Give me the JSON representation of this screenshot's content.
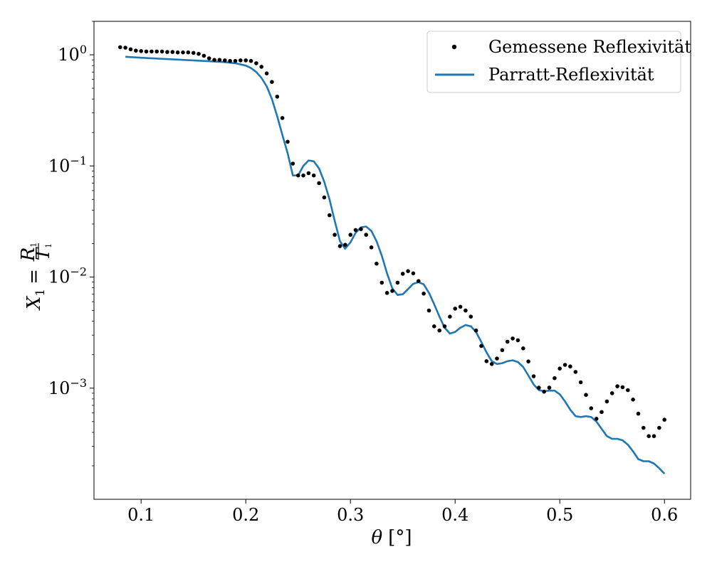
{
  "chart_data": {
    "type": "line",
    "title": "",
    "xlabel": {
      "symbol": "θ",
      "unit": "[°]"
    },
    "ylabel": {
      "lhs": "X",
      "lhs_sub": "1",
      "eq": "=",
      "num": "R",
      "num_sub": "1",
      "den": "T",
      "den_sub": "1"
    },
    "xlim": [
      0.055,
      0.625
    ],
    "ylim": [
      0.0001,
      2.0
    ],
    "yscale": "log",
    "grid": false,
    "legend_position": "top-right",
    "x_ticks": [
      {
        "value": 0.1,
        "label": "0.1"
      },
      {
        "value": 0.2,
        "label": "0.2"
      },
      {
        "value": 0.3,
        "label": "0.3"
      },
      {
        "value": 0.4,
        "label": "0.4"
      },
      {
        "value": 0.5,
        "label": "0.5"
      },
      {
        "value": 0.6,
        "label": "0.6"
      }
    ],
    "y_ticks": [
      {
        "value": 1,
        "base": "10",
        "exp": "0"
      },
      {
        "value": 0.1,
        "base": "10",
        "exp": "−1"
      },
      {
        "value": 0.01,
        "base": "10",
        "exp": "−2"
      },
      {
        "value": 0.001,
        "base": "10",
        "exp": "−3"
      }
    ],
    "series": [
      {
        "name": "Gemessene Reflexivität",
        "style": "dots",
        "color": "#000000",
        "x": [
          0.08,
          0.085,
          0.09,
          0.095,
          0.1,
          0.105,
          0.11,
          0.115,
          0.12,
          0.125,
          0.13,
          0.135,
          0.14,
          0.145,
          0.15,
          0.155,
          0.16,
          0.165,
          0.17,
          0.175,
          0.18,
          0.185,
          0.19,
          0.195,
          0.2,
          0.205,
          0.21,
          0.215,
          0.22,
          0.225,
          0.23,
          0.235,
          0.24,
          0.245,
          0.25,
          0.255,
          0.26,
          0.265,
          0.27,
          0.275,
          0.28,
          0.285,
          0.29,
          0.295,
          0.3,
          0.305,
          0.31,
          0.315,
          0.32,
          0.325,
          0.33,
          0.335,
          0.34,
          0.345,
          0.35,
          0.355,
          0.36,
          0.365,
          0.37,
          0.375,
          0.38,
          0.385,
          0.39,
          0.395,
          0.4,
          0.405,
          0.41,
          0.415,
          0.42,
          0.425,
          0.43,
          0.435,
          0.44,
          0.445,
          0.45,
          0.455,
          0.46,
          0.465,
          0.47,
          0.475,
          0.48,
          0.485,
          0.49,
          0.495,
          0.5,
          0.505,
          0.51,
          0.515,
          0.52,
          0.525,
          0.53,
          0.535,
          0.54,
          0.545,
          0.55,
          0.555,
          0.56,
          0.565,
          0.57,
          0.575,
          0.58,
          0.585,
          0.59,
          0.595,
          0.6
        ],
        "y": [
          1.17,
          1.16,
          1.12,
          1.09,
          1.08,
          1.07,
          1.07,
          1.07,
          1.07,
          1.06,
          1.06,
          1.05,
          1.05,
          1.05,
          1.04,
          1.02,
          0.98,
          0.93,
          0.9,
          0.9,
          0.89,
          0.88,
          0.88,
          0.89,
          0.89,
          0.88,
          0.84,
          0.78,
          0.68,
          0.57,
          0.42,
          0.27,
          0.165,
          0.105,
          0.082,
          0.082,
          0.086,
          0.082,
          0.07,
          0.052,
          0.036,
          0.024,
          0.019,
          0.0195,
          0.024,
          0.0265,
          0.027,
          0.024,
          0.0185,
          0.0132,
          0.0089,
          0.0072,
          0.0075,
          0.0089,
          0.0107,
          0.0113,
          0.0108,
          0.0092,
          0.0071,
          0.005,
          0.0036,
          0.0033,
          0.0036,
          0.0044,
          0.0052,
          0.0054,
          0.005,
          0.0044,
          0.0033,
          0.0024,
          0.00175,
          0.00165,
          0.00185,
          0.0022,
          0.00262,
          0.0028,
          0.0027,
          0.00228,
          0.00174,
          0.00128,
          0.00101,
          0.00093,
          0.00101,
          0.00123,
          0.0015,
          0.00162,
          0.00157,
          0.0014,
          0.00113,
          0.00087,
          0.00066,
          0.00053,
          0.00061,
          0.00076,
          0.0009,
          0.00104,
          0.00102,
          0.00096,
          0.00079,
          0.00059,
          0.00044,
          0.00037,
          0.00037,
          0.00044,
          0.00052
        ]
      },
      {
        "name": "Parratt-Reflexivität",
        "style": "line",
        "color": "#1f77b4",
        "x": [
          0.085,
          0.1,
          0.12,
          0.14,
          0.16,
          0.18,
          0.19,
          0.2,
          0.205,
          0.21,
          0.215,
          0.22,
          0.225,
          0.23,
          0.235,
          0.24,
          0.245,
          0.25,
          0.255,
          0.26,
          0.265,
          0.27,
          0.275,
          0.28,
          0.285,
          0.29,
          0.295,
          0.3,
          0.305,
          0.31,
          0.315,
          0.32,
          0.325,
          0.33,
          0.335,
          0.34,
          0.345,
          0.35,
          0.355,
          0.36,
          0.365,
          0.37,
          0.375,
          0.38,
          0.385,
          0.39,
          0.395,
          0.4,
          0.405,
          0.41,
          0.415,
          0.42,
          0.425,
          0.43,
          0.435,
          0.44,
          0.445,
          0.45,
          0.455,
          0.46,
          0.465,
          0.47,
          0.475,
          0.48,
          0.485,
          0.49,
          0.495,
          0.5,
          0.505,
          0.51,
          0.515,
          0.52,
          0.525,
          0.53,
          0.535,
          0.54,
          0.545,
          0.55,
          0.555,
          0.56,
          0.565,
          0.57,
          0.575,
          0.58,
          0.585,
          0.59,
          0.595,
          0.6
        ],
        "y": [
          0.96,
          0.94,
          0.92,
          0.9,
          0.88,
          0.86,
          0.84,
          0.8,
          0.76,
          0.7,
          0.62,
          0.52,
          0.4,
          0.28,
          0.19,
          0.13,
          0.082,
          0.082,
          0.1,
          0.112,
          0.11,
          0.095,
          0.072,
          0.05,
          0.032,
          0.021,
          0.018,
          0.0205,
          0.025,
          0.028,
          0.0285,
          0.026,
          0.021,
          0.0155,
          0.0108,
          0.0079,
          0.0069,
          0.007,
          0.0078,
          0.0087,
          0.009,
          0.0086,
          0.0072,
          0.0057,
          0.0044,
          0.0035,
          0.0031,
          0.0032,
          0.0035,
          0.0037,
          0.0036,
          0.0032,
          0.0026,
          0.0021,
          0.00175,
          0.00165,
          0.00168,
          0.00175,
          0.00178,
          0.00172,
          0.00155,
          0.0013,
          0.00108,
          0.00096,
          0.00094,
          0.00095,
          0.00095,
          0.00088,
          0.00076,
          0.00064,
          0.00056,
          0.00055,
          0.00056,
          0.00055,
          0.0005,
          0.00043,
          0.00037,
          0.00035,
          0.00035,
          0.00034,
          0.00031,
          0.00027,
          0.00023,
          0.00022,
          0.00022,
          0.00021,
          0.00019,
          0.00017
        ]
      }
    ]
  }
}
